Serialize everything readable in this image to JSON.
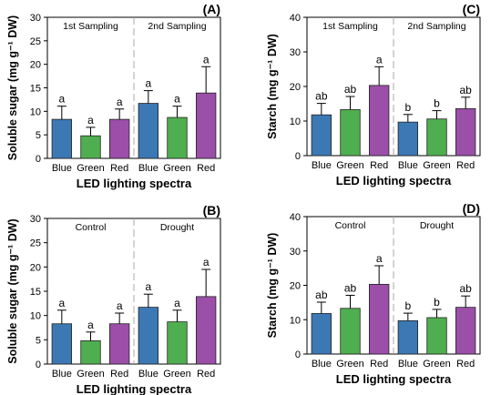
{
  "colors": {
    "blue": "#3c78b4",
    "green": "#4fae4f",
    "red": "#9b4fa8"
  },
  "chart_data": [
    {
      "type": "bar",
      "panel_label": "(A)",
      "ylabel": "Soluble sugar (mg g⁻¹ DW)",
      "xlabel": "LED lighting spectra",
      "ylim": [
        0,
        30
      ],
      "yticks": [
        0,
        5,
        10,
        15,
        20,
        25,
        30
      ],
      "group_labels": [
        "1st Sampling",
        "2nd Sampling"
      ],
      "categories": [
        "Blue",
        "Green",
        "Red",
        "Blue",
        "Green",
        "Red"
      ],
      "values": [
        8.3,
        4.8,
        8.3,
        11.7,
        8.7,
        13.9
      ],
      "errors": [
        2.8,
        1.8,
        2.2,
        2.7,
        2.4,
        5.6
      ],
      "letters": [
        "a",
        "a",
        "a",
        "a",
        "a",
        "a"
      ],
      "bar_colors": [
        "blue",
        "green",
        "red",
        "blue",
        "green",
        "red"
      ],
      "grid": false,
      "legend": "none"
    },
    {
      "type": "bar",
      "panel_label": "(C)",
      "ylabel": "Starch (mg g⁻¹ DW)",
      "xlabel": "LED lighting spectra",
      "ylim": [
        0,
        40
      ],
      "yticks": [
        0,
        10,
        20,
        30,
        40
      ],
      "group_labels": [
        "1st Sampling",
        "2nd Sampling"
      ],
      "categories": [
        "Blue",
        "Green",
        "Red",
        "Blue",
        "Green",
        "Red"
      ],
      "values": [
        11.8,
        13.3,
        20.3,
        9.7,
        10.6,
        13.6
      ],
      "errors": [
        3.3,
        3.8,
        5.4,
        2.2,
        2.4,
        3.3
      ],
      "letters": [
        "ab",
        "ab",
        "a",
        "b",
        "b",
        "ab"
      ],
      "bar_colors": [
        "blue",
        "green",
        "red",
        "blue",
        "green",
        "red"
      ],
      "grid": false,
      "legend": "none"
    },
    {
      "type": "bar",
      "panel_label": "(B)",
      "ylabel": "Soluble sugar (mg g⁻¹ DW)",
      "xlabel": "LED lighting spectra",
      "ylim": [
        0,
        30
      ],
      "yticks": [
        0,
        5,
        10,
        15,
        20,
        25,
        30
      ],
      "group_labels": [
        "Control",
        "Drought"
      ],
      "categories": [
        "Blue",
        "Green",
        "Red",
        "Blue",
        "Green",
        "Red"
      ],
      "values": [
        8.3,
        4.8,
        8.3,
        11.7,
        8.7,
        13.9
      ],
      "errors": [
        2.8,
        1.8,
        2.2,
        2.7,
        2.4,
        5.6
      ],
      "letters": [
        "a",
        "a",
        "a",
        "a",
        "a",
        "a"
      ],
      "bar_colors": [
        "blue",
        "green",
        "red",
        "blue",
        "green",
        "red"
      ],
      "grid": false,
      "legend": "none"
    },
    {
      "type": "bar",
      "panel_label": "(D)",
      "ylabel": "Starch (mg g⁻¹ DW)",
      "xlabel": "LED lighting spectra",
      "ylim": [
        0,
        40
      ],
      "yticks": [
        0,
        10,
        20,
        30,
        40
      ],
      "group_labels": [
        "Control",
        "Drought"
      ],
      "categories": [
        "Blue",
        "Green",
        "Red",
        "Blue",
        "Green",
        "Red"
      ],
      "values": [
        11.8,
        13.3,
        20.3,
        9.7,
        10.6,
        13.6
      ],
      "errors": [
        3.3,
        3.8,
        5.4,
        2.2,
        2.4,
        3.3
      ],
      "letters": [
        "ab",
        "ab",
        "a",
        "b",
        "b",
        "ab"
      ],
      "bar_colors": [
        "blue",
        "green",
        "red",
        "blue",
        "green",
        "red"
      ],
      "grid": false,
      "legend": "none"
    }
  ]
}
